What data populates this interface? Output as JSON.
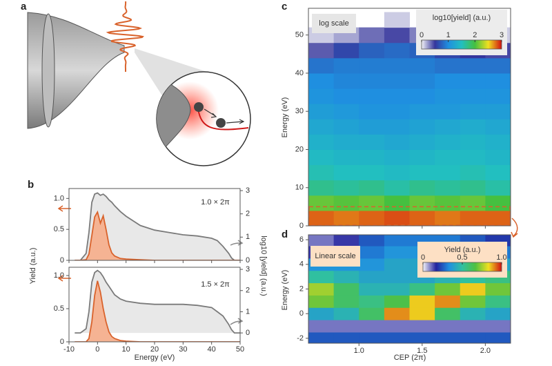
{
  "panel_a": {
    "label": "a"
  },
  "chart_data": [
    {
      "type": "line",
      "panel_label": "b",
      "annotation": "1.0 × 2π",
      "ylabel": "Yield (a.u.)",
      "y2label": "log10 [yield] (a.u.)",
      "xtick_labels": false,
      "x": [
        -8,
        -6,
        -4,
        -3,
        -2,
        -1,
        0,
        1,
        2,
        3,
        4,
        5,
        6,
        8,
        10,
        15,
        20,
        25,
        30,
        35,
        40,
        42,
        44,
        46,
        47,
        48,
        50
      ],
      "xlim": [
        -10,
        50
      ],
      "xticks": [
        -10,
        0,
        10,
        20,
        30,
        40,
        50
      ],
      "ylim": [
        0,
        1.16
      ],
      "yticks": [
        0,
        0.5,
        {
          "value": 1,
          "label": "1.0"
        }
      ],
      "y2lim": [
        0,
        3.09
      ],
      "y2ticks": [
        0,
        1,
        2,
        3
      ],
      "series": [
        {
          "color": "#7a7a7a",
          "fill": "#e8e8e8",
          "axis": "y2",
          "values": [
            0,
            0,
            0.3,
            1.2,
            2.5,
            2.85,
            2.9,
            2.8,
            2.85,
            2.75,
            2.6,
            2.5,
            2.35,
            2.1,
            1.9,
            1.5,
            1.3,
            1.2,
            1.1,
            1.05,
            0.95,
            0.85,
            0.6,
            0.3,
            0.1,
            0,
            0
          ]
        },
        {
          "color": "#d9622b",
          "fill": "#f5b393",
          "values": [
            0,
            0,
            0.01,
            0.1,
            0.4,
            0.7,
            0.78,
            0.6,
            0.72,
            0.5,
            0.25,
            0.12,
            0.07,
            0.03,
            0.02,
            0.01,
            0,
            0,
            0,
            0,
            0,
            0,
            0,
            0,
            0,
            0,
            0
          ]
        }
      ]
    },
    {
      "type": "line",
      "annotation": "1.5 × 2π",
      "xlabel": "Energy (eV)",
      "x": [
        -8,
        -6,
        -4,
        -3,
        -2,
        -1,
        0,
        1,
        2,
        3,
        4,
        5,
        6,
        8,
        10,
        15,
        20,
        25,
        30,
        35,
        40,
        42,
        44,
        46,
        47,
        48,
        50
      ],
      "xlim": [
        -10,
        50
      ],
      "xticks": [
        -10,
        0,
        10,
        20,
        30,
        40,
        50
      ],
      "ylim": [
        0,
        1.125
      ],
      "yticks": [
        0,
        0.5,
        {
          "value": 1,
          "label": "1.0"
        }
      ],
      "y2lim": [
        -0.42,
        3.1
      ],
      "y2ticks": [
        0,
        1,
        2,
        3
      ],
      "series": [
        {
          "color": "#7a7a7a",
          "fill": "#e8e8e8",
          "axis": "y2",
          "values": [
            0,
            0,
            0.2,
            1,
            2.4,
            2.85,
            2.95,
            2.85,
            2.65,
            2.4,
            2.2,
            2.0,
            1.8,
            1.6,
            1.5,
            1.4,
            1.35,
            1.35,
            1.35,
            1.3,
            1.2,
            1.0,
            0.8,
            0.4,
            0.15,
            0,
            0
          ]
        },
        {
          "color": "#d9622b",
          "fill": "#f5b393",
          "values": [
            0,
            0,
            0,
            0.05,
            0.3,
            0.7,
            0.92,
            0.75,
            0.5,
            0.3,
            0.15,
            0.08,
            0.05,
            0.02,
            0.01,
            0,
            0,
            0,
            0,
            0,
            0,
            0,
            0,
            0,
            0,
            0,
            0
          ]
        }
      ]
    },
    {
      "type": "heatmap",
      "panel_label": "c",
      "scale_label": "log scale",
      "ylabel": "Energy (eV)",
      "xtick_labels": false,
      "colorbar_label": "log10[yield] (a.u.)",
      "zlim": [
        0,
        3
      ],
      "colorbar_ticks": [
        0,
        1,
        2,
        3
      ],
      "colormap": [
        "#f2f2f6",
        "#35359c",
        "#1f8fe0",
        "#22bfc0",
        "#45c040",
        "#f0e020",
        "#d01010"
      ],
      "xlim": [
        0.6,
        2.2
      ],
      "xticks": [
        1,
        1.5,
        2
      ],
      "ylim": [
        0,
        57
      ],
      "yticks": [
        0,
        10,
        20,
        30,
        40,
        50
      ],
      "highlight_ylim": [
        0,
        5
      ],
      "x_edges": [
        0.6,
        0.8,
        1.0,
        1.2,
        1.4,
        1.6,
        1.8,
        2.0,
        2.2
      ],
      "y_edges": [
        0,
        4,
        8,
        12,
        16,
        20,
        24,
        28,
        32,
        36,
        40,
        44,
        48,
        52,
        56
      ],
      "z": [
        [
          2.8,
          2.75,
          2.8,
          2.85,
          2.8,
          2.75,
          2.8,
          2.8
        ],
        [
          2.1,
          2.05,
          2.1,
          2.0,
          2.1,
          2.05,
          2.1,
          2.0
        ],
        [
          1.7,
          1.65,
          1.7,
          1.6,
          1.7,
          1.65,
          1.7,
          1.6
        ],
        [
          1.55,
          1.5,
          1.5,
          1.45,
          1.5,
          1.5,
          1.55,
          1.5
        ],
        [
          1.45,
          1.4,
          1.4,
          1.35,
          1.4,
          1.45,
          1.45,
          1.4
        ],
        [
          1.35,
          1.3,
          1.3,
          1.25,
          1.3,
          1.35,
          1.4,
          1.35
        ],
        [
          1.25,
          1.2,
          1.15,
          1.15,
          1.2,
          1.25,
          1.3,
          1.25
        ],
        [
          1.15,
          1.1,
          1.05,
          1.05,
          1.1,
          1.1,
          1.15,
          1.15
        ],
        [
          1.05,
          1.0,
          1.0,
          1.0,
          1.0,
          1.05,
          1.05,
          1.05
        ],
        [
          1.0,
          0.95,
          0.95,
          0.95,
          0.95,
          1.0,
          1.0,
          1.0
        ],
        [
          0.85,
          0.9,
          0.9,
          0.9,
          0.9,
          0.85,
          0.85,
          0.85
        ],
        [
          0.4,
          0.6,
          0.75,
          0.8,
          0.75,
          0.6,
          0.5,
          0.45
        ],
        [
          0.1,
          0.2,
          0.35,
          0.45,
          0.3,
          0.2,
          0.15,
          0.1
        ],
        [
          null,
          null,
          null,
          0.1,
          null,
          null,
          null,
          null
        ]
      ]
    },
    {
      "type": "heatmap",
      "panel_label": "d",
      "scale_label": "Linear scale",
      "ylabel": "Energy (eV)",
      "xlabel": "CEP (2π)",
      "colorbar_label": "Yield (a.u.)",
      "zlim": [
        0,
        1
      ],
      "colorbar_ticks": [
        0,
        0.5,
        {
          "value": 1,
          "label": "1.0"
        }
      ],
      "colormap": [
        "#f4f4f8",
        "#22229e",
        "#2090e0",
        "#30c0a0",
        "#50c040",
        "#f0e020",
        "#d01010"
      ],
      "xlim": [
        0.6,
        2.2
      ],
      "xticks": [
        {
          "value": 1,
          "label": "1.0"
        },
        1.5,
        {
          "value": 2,
          "label": "2.0"
        }
      ],
      "ylim": [
        -2.4,
        6.4
      ],
      "yticks": [
        -2,
        0,
        2,
        4,
        6
      ],
      "x_edges": [
        0.6,
        0.8,
        1.0,
        1.2,
        1.4,
        1.6,
        1.8,
        2.0,
        2.2
      ],
      "y_edges": [
        -2.5,
        -1.5,
        -0.5,
        0.5,
        1.5,
        2.5,
        3.5,
        4.5,
        5.5,
        6.5
      ],
      "z": [
        [
          0.25,
          0.25,
          0.25,
          0.25,
          0.25,
          0.25,
          0.25,
          0.25
        ],
        [
          0.1,
          0.1,
          0.1,
          0.1,
          0.1,
          0.1,
          0.1,
          0.1
        ],
        [
          0.4,
          0.45,
          0.6,
          0.9,
          0.85,
          0.6,
          0.45,
          0.4
        ],
        [
          0.7,
          0.6,
          0.55,
          0.65,
          0.85,
          0.9,
          0.7,
          0.55
        ],
        [
          0.75,
          0.6,
          0.45,
          0.45,
          0.55,
          0.7,
          0.85,
          0.7
        ],
        [
          0.5,
          0.45,
          0.4,
          0.4,
          0.4,
          0.45,
          0.5,
          0.55
        ],
        [
          0.35,
          0.35,
          0.35,
          0.4,
          0.4,
          0.4,
          0.4,
          0.4
        ],
        [
          0.15,
          0.25,
          0.3,
          0.35,
          0.35,
          0.35,
          0.35,
          0.3
        ],
        [
          0.1,
          0.15,
          0.25,
          0.3,
          0.3,
          0.3,
          0.25,
          0.2
        ]
      ]
    }
  ]
}
